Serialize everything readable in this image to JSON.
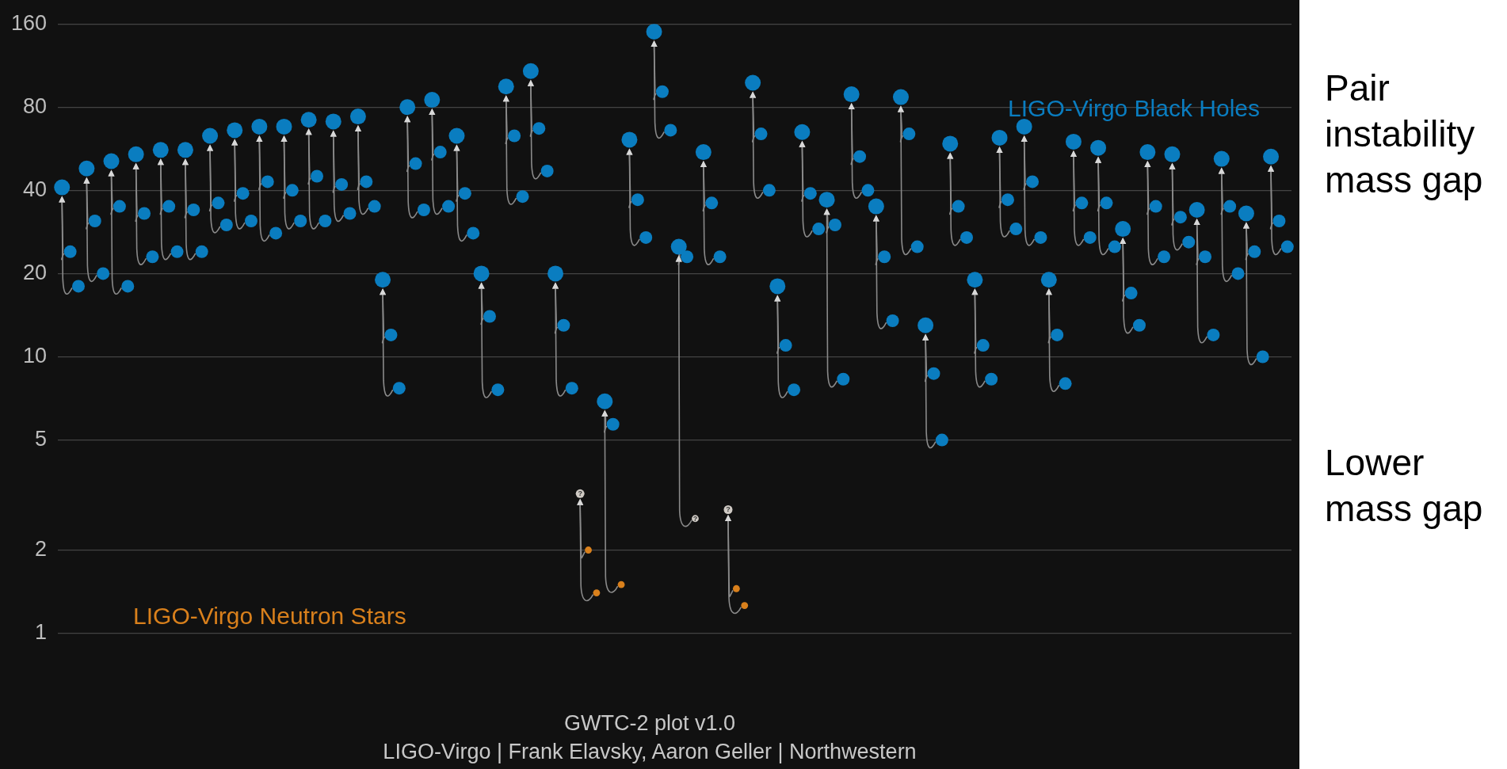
{
  "chart_data": {
    "type": "scatter",
    "log": true,
    "grid": "y",
    "marker": "circle",
    "ylim": [
      1,
      160
    ],
    "yticks": [
      1,
      2,
      5,
      10,
      20,
      40,
      80,
      160
    ],
    "categories": [
      null,
      null,
      null,
      null,
      null,
      null,
      null,
      null,
      null,
      null,
      null,
      null,
      null,
      null,
      null,
      null,
      null,
      null,
      null,
      null,
      null,
      null,
      null,
      null,
      null,
      null,
      null,
      null,
      null,
      null,
      null,
      null,
      null,
      null,
      null,
      null,
      null,
      null,
      null,
      null,
      null,
      null,
      null,
      null,
      null,
      null,
      null,
      null,
      null,
      null,
      null,
      null,
      null,
      null,
      null,
      null,
      null,
      null,
      null,
      null,
      null,
      null,
      null,
      null,
      null,
      null,
      null,
      null,
      null,
      null,
      null,
      null,
      null,
      null,
      null,
      null,
      null,
      null,
      null,
      null,
      null,
      null,
      null,
      null,
      null,
      null,
      null,
      null,
      null,
      null,
      null,
      null,
      null,
      null,
      null,
      null,
      null,
      null,
      null,
      null,
      null,
      null,
      null,
      null,
      null,
      null,
      null,
      null,
      null,
      null,
      null,
      null,
      null,
      null,
      null,
      null,
      null,
      null,
      null,
      null,
      null,
      null,
      null,
      null,
      null,
      null,
      null,
      null,
      null,
      null,
      null,
      null,
      null,
      null,
      null,
      null,
      null,
      null,
      null,
      null,
      null,
      null,
      null,
      null,
      null,
      null,
      null,
      null,
      null,
      null
    ],
    "series": [
      {
        "name": "LIGO-Virgo Black Holes",
        "color": "#0a7dc0",
        "values": [
          41,
          24,
          18,
          48,
          31,
          20,
          51,
          35,
          18,
          54,
          33,
          23,
          56,
          35,
          24,
          56,
          34,
          24,
          63,
          36,
          30,
          66,
          39,
          31,
          68,
          43,
          28,
          68,
          40,
          31,
          72,
          45,
          31,
          71,
          42,
          33,
          74,
          43,
          35,
          19,
          12,
          7.7,
          80,
          50,
          34,
          85,
          55,
          35,
          63,
          39,
          28,
          20,
          14,
          7.6,
          95,
          63,
          38,
          108,
          67,
          47,
          20,
          13,
          7.7,
          null,
          null,
          null,
          6.9,
          5.7,
          null,
          61,
          37,
          27,
          150,
          91,
          66,
          25,
          23,
          null,
          55,
          36,
          23,
          null,
          null,
          null,
          98,
          64,
          40,
          18,
          11,
          7.6,
          65,
          39,
          29,
          37,
          30,
          8.3,
          89,
          53,
          40,
          35,
          23,
          13.5,
          87,
          64,
          25,
          13,
          8.7,
          5.0,
          59,
          35,
          27,
          19,
          11,
          8.3,
          62,
          37,
          29,
          68,
          43,
          27,
          19,
          12,
          8.0,
          60,
          36,
          27,
          57,
          36,
          25,
          29,
          17,
          13,
          55,
          35,
          23,
          54,
          32,
          26,
          34,
          23,
          12,
          52,
          35,
          20,
          33,
          24,
          10,
          53,
          31,
          25
        ]
      },
      {
        "name": "LIGO-Virgo Neutron Stars",
        "color": "#d9801c",
        "values": [
          null,
          null,
          null,
          null,
          null,
          null,
          null,
          null,
          null,
          null,
          null,
          null,
          null,
          null,
          null,
          null,
          null,
          null,
          null,
          null,
          null,
          null,
          null,
          null,
          null,
          null,
          null,
          null,
          null,
          null,
          null,
          null,
          null,
          null,
          null,
          null,
          null,
          null,
          null,
          null,
          null,
          null,
          null,
          null,
          null,
          null,
          null,
          null,
          null,
          null,
          null,
          null,
          null,
          null,
          null,
          null,
          null,
          null,
          null,
          null,
          null,
          null,
          null,
          null,
          2.0,
          1.4,
          null,
          null,
          1.5,
          null,
          null,
          null,
          null,
          null,
          null,
          null,
          null,
          null,
          null,
          null,
          null,
          null,
          1.45,
          1.26,
          null,
          null,
          null,
          null,
          null,
          null,
          null,
          null,
          null,
          null,
          null,
          null,
          null,
          null,
          null,
          null,
          null,
          null,
          null,
          null,
          null,
          null,
          null,
          null,
          null,
          null,
          null,
          null,
          null,
          null,
          null,
          null,
          null,
          null,
          null,
          null,
          null,
          null,
          null,
          null,
          null,
          null,
          null,
          null,
          null,
          null,
          null,
          null,
          null,
          null,
          null,
          null,
          null,
          null,
          null,
          null,
          null,
          null,
          null,
          null,
          null,
          null,
          null,
          null,
          null,
          null
        ]
      },
      {
        "color": "#cfcac4",
        "values": [
          null,
          null,
          null,
          null,
          null,
          null,
          null,
          null,
          null,
          null,
          null,
          null,
          null,
          null,
          null,
          null,
          null,
          null,
          null,
          null,
          null,
          null,
          null,
          null,
          null,
          null,
          null,
          null,
          null,
          null,
          null,
          null,
          null,
          null,
          null,
          null,
          null,
          null,
          null,
          null,
          null,
          null,
          null,
          null,
          null,
          null,
          null,
          null,
          null,
          null,
          null,
          null,
          null,
          null,
          null,
          null,
          null,
          null,
          null,
          null,
          null,
          null,
          null,
          3.2,
          null,
          null,
          null,
          null,
          null,
          null,
          null,
          null,
          null,
          null,
          null,
          null,
          null,
          2.6,
          null,
          null,
          null,
          2.8,
          null,
          null,
          null,
          null,
          null,
          null,
          null,
          null,
          null,
          null,
          null,
          null,
          null,
          null,
          null,
          null,
          null,
          null,
          null,
          null,
          null,
          null,
          null,
          null,
          null,
          null,
          null,
          null,
          null,
          null,
          null,
          null,
          null,
          null,
          null,
          null,
          null,
          null,
          null,
          null,
          null,
          null,
          null,
          null,
          null,
          null,
          null,
          null,
          null,
          null,
          null,
          null,
          null,
          null,
          null,
          null,
          null,
          null,
          null,
          null,
          null,
          null,
          null,
          null,
          null,
          null,
          null,
          null
        ],
        "value_labels": [
          null,
          null,
          null,
          null,
          null,
          null,
          null,
          null,
          null,
          null,
          null,
          null,
          null,
          null,
          null,
          null,
          null,
          null,
          null,
          null,
          null,
          null,
          null,
          null,
          null,
          null,
          null,
          null,
          null,
          null,
          null,
          null,
          null,
          null,
          null,
          null,
          null,
          null,
          null,
          null,
          null,
          null,
          null,
          null,
          null,
          null,
          null,
          null,
          null,
          null,
          null,
          null,
          null,
          null,
          null,
          null,
          null,
          null,
          null,
          null,
          null,
          null,
          null,
          "?",
          null,
          null,
          null,
          null,
          null,
          null,
          null,
          null,
          null,
          null,
          null,
          null,
          null,
          "?",
          null,
          null,
          null,
          "?",
          null,
          null,
          null,
          null,
          null,
          null,
          null,
          null,
          null,
          null,
          null,
          null,
          null,
          null,
          null,
          null,
          null,
          null,
          null,
          null,
          null,
          null,
          null,
          null,
          null,
          null,
          null,
          null,
          null,
          null,
          null,
          null,
          null,
          null,
          null,
          null,
          null,
          null,
          null,
          null,
          null,
          null,
          null,
          null,
          null,
          null,
          null,
          null,
          null,
          null,
          null,
          null,
          null,
          null,
          null,
          null,
          null,
          null,
          null,
          null,
          null,
          null,
          null,
          null,
          null,
          null,
          null,
          null
        ]
      }
    ],
    "annotations": [
      "Pair instability mass gap",
      "Lower mass gap",
      "GWTC-2 plot v1.0",
      "LIGO-Virgo | Frank Elavsky, Aaron Geller | Northwestern"
    ]
  }
}
